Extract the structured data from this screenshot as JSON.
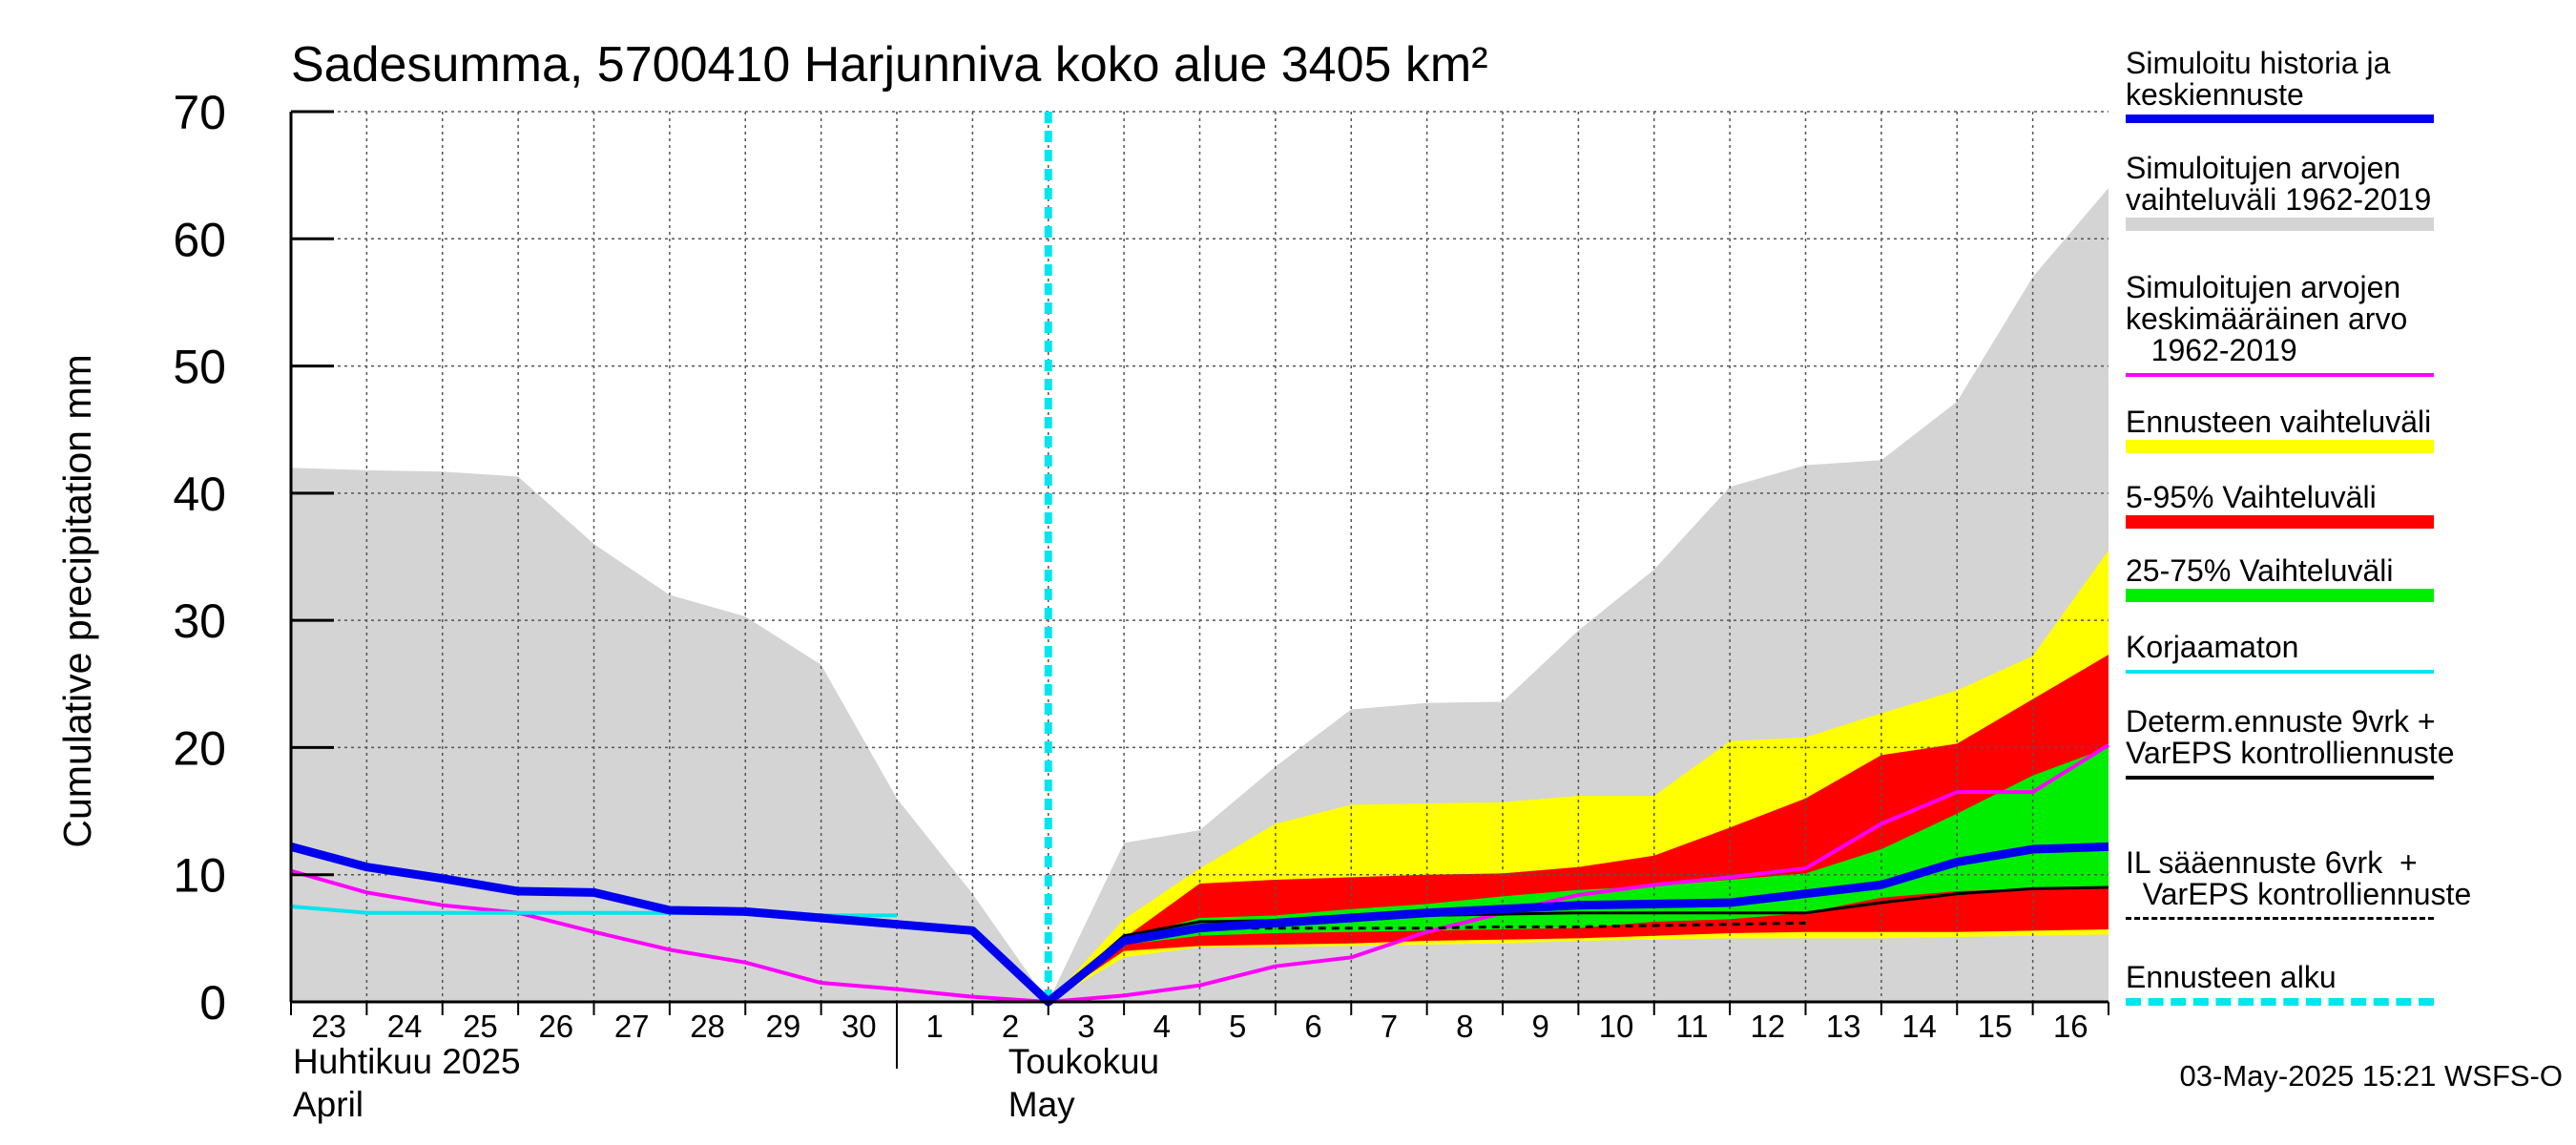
{
  "title": "Sadesumma, 5700410 Harjunniva koko alue 3405 km²",
  "footer": "03-May-2025 15:21 WSFS-O",
  "chart_data": {
    "type": "area",
    "title": "Sadesumma, 5700410 Harjunniva koko alue 3405 km²",
    "ylabel": "Cumulative precipitation   mm",
    "ylim": [
      0,
      70
    ],
    "yticks": [
      0,
      10,
      20,
      30,
      40,
      50,
      60,
      70
    ],
    "x_day_labels": [
      "23",
      "24",
      "25",
      "26",
      "27",
      "28",
      "29",
      "30",
      "1",
      "2",
      "3",
      "4",
      "5",
      "6",
      "7",
      "8",
      "9",
      "10",
      "11",
      "12",
      "13",
      "14",
      "15",
      "16"
    ],
    "month_labels": [
      {
        "fi": "Huhtikuu  2025",
        "en": "April"
      },
      {
        "fi": "Toukokuu",
        "en": "May"
      }
    ],
    "grid": true,
    "x_days": [
      0,
      1,
      2,
      3,
      4,
      5,
      6,
      7,
      8,
      9,
      10,
      11,
      12,
      13,
      14,
      15,
      16,
      17,
      18,
      19,
      20,
      21,
      22,
      23,
      24
    ],
    "forecast_start_day": 10,
    "series": [
      {
        "name": "Simuloitujen arvojen vaihteluväli 1962-2019",
        "kind": "band",
        "color": "#d4d4d4",
        "upper": [
          42,
          41.8,
          41.7,
          41.3,
          36,
          32,
          30.3,
          26.5,
          16,
          8.5,
          0,
          12.5,
          13.5,
          18.5,
          23,
          23.5,
          23.6,
          29.2,
          34,
          40.5,
          42.2,
          42.6,
          47.2,
          57,
          64
        ],
        "lower": [
          0,
          0,
          0,
          0,
          0,
          0,
          0,
          0,
          0,
          0,
          0,
          0,
          0,
          0,
          0,
          0,
          0,
          0,
          0,
          0,
          0,
          0,
          0,
          0,
          0
        ]
      },
      {
        "name": "Ennusteen vaihteluväli",
        "kind": "band",
        "color": "#ffff00",
        "start": 10,
        "upper": [
          0,
          6.5,
          10.5,
          14,
          15.5,
          15.6,
          15.7,
          16.2,
          16.2,
          20.5,
          20.8,
          22.7,
          24.5,
          27.2,
          35.5
        ],
        "lower": [
          0,
          3.5,
          4.3,
          4.3,
          4.4,
          4.5,
          4.6,
          4.8,
          4.9,
          5,
          5,
          5,
          5.1,
          5.2,
          5.3
        ]
      },
      {
        "name": "5-95% Vaihteluväli",
        "kind": "band",
        "color": "#ff0000",
        "start": 10,
        "upper": [
          0,
          5,
          9.3,
          9.6,
          9.8,
          10,
          10.1,
          10.6,
          11.5,
          13.7,
          16,
          19.4,
          20.3,
          23.8,
          27.3
        ],
        "lower": [
          0,
          4,
          4.4,
          4.5,
          4.6,
          4.8,
          4.9,
          5,
          5.2,
          5.4,
          5.5,
          5.5,
          5.5,
          5.6,
          5.7
        ]
      },
      {
        "name": "25-75% Vaihteluväli",
        "kind": "band",
        "color": "#00ee00",
        "start": 10,
        "upper": [
          0,
          5,
          6.6,
          6.8,
          7.3,
          7.7,
          8.3,
          8.8,
          9.1,
          9.6,
          10.1,
          12,
          14.8,
          17.8,
          20
        ],
        "lower": [
          0,
          4.5,
          5.2,
          5.4,
          5.5,
          5.6,
          5.7,
          5.8,
          6.3,
          6.5,
          7,
          8.2,
          8.7,
          8.9,
          9
        ]
      },
      {
        "name": "Simuloitujen arvojen keskimääräinen arvo 1962-2019",
        "kind": "line",
        "color": "#ff00ff",
        "width": 4,
        "x": [
          0,
          1,
          2,
          3,
          4,
          5,
          6,
          7,
          8,
          9,
          10,
          11,
          12,
          13,
          14,
          15,
          16,
          17,
          18,
          19,
          20,
          21,
          22,
          23,
          24
        ],
        "y": [
          10.3,
          8.6,
          7.6,
          7,
          5.5,
          4.1,
          3.1,
          1.5,
          1,
          0.4,
          0,
          0.5,
          1.3,
          2.8,
          3.5,
          5.5,
          7,
          8.4,
          9.2,
          9.8,
          10.5,
          14,
          16.5,
          16.5,
          20.2
        ]
      },
      {
        "name": "Korjaamaton",
        "kind": "line",
        "color": "#00e5ee",
        "width": 4,
        "x": [
          0,
          1,
          2,
          3,
          4,
          5,
          6,
          7,
          8
        ],
        "y": [
          7.5,
          7,
          7,
          7,
          7,
          7,
          7,
          6.8,
          6.8
        ]
      },
      {
        "name": "Determ.ennuste 9vrk + VarEPS kontrolliennuste",
        "kind": "line",
        "color": "#000000",
        "width": 3,
        "x": [
          10,
          11,
          12,
          13,
          14,
          15,
          16,
          17,
          18,
          19,
          20,
          21,
          22,
          23,
          24
        ],
        "y": [
          0,
          5.2,
          6.3,
          6.4,
          6.6,
          6.8,
          6.9,
          7,
          7,
          7,
          7,
          7.8,
          8.5,
          8.9,
          9
        ]
      },
      {
        "name": "IL sääennuste 6vrk  +  VarEPS kontrolliennuste",
        "kind": "dashed",
        "color": "#000000",
        "width": 3,
        "x": [
          10,
          11,
          12,
          13,
          14,
          15,
          16,
          17,
          18,
          19,
          20
        ],
        "y": [
          0,
          5,
          5.8,
          5.8,
          5.8,
          5.8,
          5.9,
          5.9,
          6,
          6.1,
          6.2
        ]
      },
      {
        "name": "Simuloitu historia ja keskiennuste",
        "kind": "line",
        "color": "#0000ee",
        "width": 9,
        "x": [
          0,
          1,
          2,
          3,
          4,
          5,
          6,
          7,
          8,
          9,
          10,
          11,
          12,
          13,
          14,
          15,
          16,
          17,
          18,
          19,
          20,
          21,
          22,
          23,
          24
        ],
        "y": [
          12.2,
          10.6,
          9.7,
          8.7,
          8.6,
          7.2,
          7.1,
          6.6,
          6.1,
          5.6,
          0,
          4.8,
          5.8,
          6.2,
          6.6,
          7,
          7.3,
          7.6,
          7.7,
          7.8,
          8.5,
          9.2,
          11,
          12,
          12.2
        ]
      }
    ]
  },
  "legend": [
    {
      "text": "Simuloitu historia ja\nkeskiennuste",
      "color": "#0000ee",
      "style": "thick"
    },
    {
      "text": "Simuloitujen arvojen\nvaihteluväli 1962-2019",
      "color": "#d4d4d4",
      "style": "band"
    },
    {
      "text": "Simuloitujen arvojen\nkeskimääräinen arvo\n   1962-2019",
      "color": "#ff00ff",
      "style": "line"
    },
    {
      "text": "Ennusteen vaihteluväli",
      "color": "#ffff00",
      "style": "band"
    },
    {
      "text": "5-95% Vaihteluväli",
      "color": "#ff0000",
      "style": "band"
    },
    {
      "text": "25-75% Vaihteluväli",
      "color": "#00ee00",
      "style": "band"
    },
    {
      "text": "Korjaamaton",
      "color": "#00e5ee",
      "style": "line"
    },
    {
      "text": "Determ.ennuste 9vrk +\nVarEPS kontrolliennuste",
      "color": "#000000",
      "style": "line"
    },
    {
      "text": "IL sääennuste 6vrk  +\n  VarEPS kontrolliennuste",
      "color": "#000000",
      "style": "dashed"
    },
    {
      "text": "Ennusteen alku",
      "color": "#00e5ee",
      "style": "dotted"
    }
  ]
}
